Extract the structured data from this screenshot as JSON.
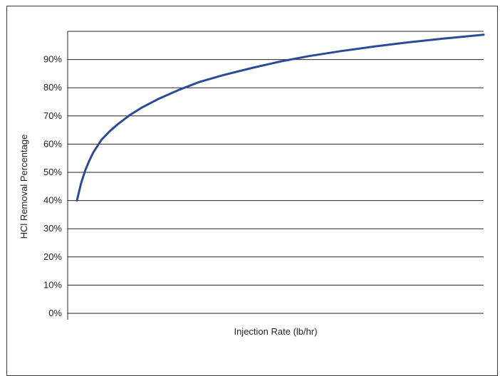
{
  "chart_data": {
    "type": "line",
    "title": "",
    "xlabel": "Injection Rate (lb/hr)",
    "ylabel": "HCl Removal Percentage",
    "ylim": [
      0,
      100
    ],
    "yticks": [
      "0%",
      "10%",
      "20%",
      "30%",
      "40%",
      "50%",
      "60%",
      "70%",
      "80%",
      "90%"
    ],
    "ytick_values": [
      0,
      10,
      20,
      30,
      40,
      50,
      60,
      70,
      80,
      90
    ],
    "xlim": [
      0,
      100
    ],
    "grid": "horizontal",
    "series": [
      {
        "color": "#2b4a9a",
        "x": [
          0,
          1,
          2,
          3,
          4,
          6,
          8,
          10,
          13,
          16,
          20,
          25,
          30,
          36,
          43,
          50,
          57,
          65,
          73,
          81,
          90,
          100
        ],
        "y": [
          40,
          46,
          50.5,
          54,
          57,
          61.5,
          64.5,
          67,
          70.3,
          73,
          76,
          79.2,
          82,
          84.5,
          87,
          89.3,
          91.2,
          93,
          94.6,
          96,
          97.4,
          98.8
        ]
      }
    ]
  }
}
